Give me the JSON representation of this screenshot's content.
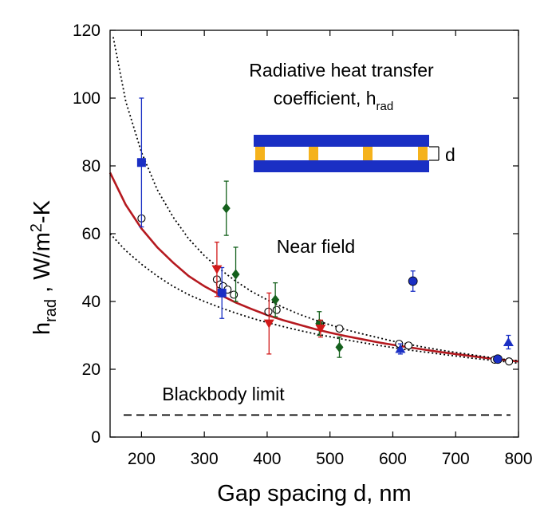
{
  "chart_data": {
    "type": "scatter",
    "title": "",
    "xlabel": "Gap spacing d, nm",
    "ylabel": {
      "main": "h",
      "sub": "rad",
      "units_prefix": " ,  W/m",
      "sup": "2",
      "units_suffix": "-K"
    },
    "xlim": [
      150,
      800
    ],
    "ylim": [
      0,
      120
    ],
    "xticks": [
      200,
      300,
      400,
      500,
      600,
      700,
      800
    ],
    "yticks": [
      0,
      20,
      40,
      60,
      80,
      100,
      120
    ],
    "grid": false,
    "annotations": {
      "title_line1": "Radiative heat transfer",
      "title_line2": "coefficient, h",
      "title_line2_sub": "rad",
      "near_field": "Near field",
      "blackbody": "Blackbody limit",
      "gap_label": "d"
    },
    "blackbody_limit": 6.5,
    "curves": [
      {
        "name": "fit",
        "style": "solid",
        "color": "#b5191f",
        "x": [
          150,
          175,
          200,
          225,
          250,
          275,
          300,
          325,
          350,
          375,
          400,
          425,
          450,
          475,
          500,
          525,
          550,
          575,
          600,
          625,
          650,
          675,
          700,
          725,
          750,
          775,
          800
        ],
        "y": [
          78,
          68.5,
          61.5,
          56,
          51.5,
          47.5,
          44.5,
          42,
          39.7,
          37.8,
          36,
          34.5,
          33.2,
          31.9,
          30.8,
          29.8,
          28.9,
          28,
          27.2,
          26.5,
          25.8,
          25.1,
          24.5,
          23.9,
          23.3,
          22.8,
          22.3
        ]
      },
      {
        "name": "upper-bound",
        "style": "dotted",
        "color": "#000000",
        "x": [
          155,
          175,
          200,
          225,
          250,
          275,
          300,
          325,
          350,
          375,
          400,
          425,
          450,
          475,
          500,
          525,
          550,
          575,
          600,
          625,
          650,
          675,
          700,
          725,
          750,
          775,
          800
        ],
        "y": [
          118,
          99,
          84,
          73,
          65,
          58.5,
          53.5,
          49.5,
          46,
          43,
          40.5,
          38.3,
          36.3,
          34.6,
          33.1,
          31.7,
          30.5,
          29.4,
          28.3,
          27.4,
          26.5,
          25.7,
          25,
          24.3,
          23.6,
          23,
          22.5
        ]
      },
      {
        "name": "lower-bound",
        "style": "dotted",
        "color": "#000000",
        "x": [
          150,
          175,
          200,
          225,
          250,
          275,
          300,
          325,
          350,
          375,
          400,
          425,
          450,
          475,
          500,
          525,
          550,
          575,
          600,
          625,
          650,
          675,
          700,
          725,
          750,
          775,
          800
        ],
        "y": [
          60,
          55,
          51,
          47.5,
          44.5,
          42,
          40,
          38.2,
          36.6,
          35.1,
          33.8,
          32.6,
          31.5,
          30.5,
          29.6,
          28.7,
          27.9,
          27.1,
          26.4,
          25.7,
          25.1,
          24.5,
          23.9,
          23.3,
          22.8,
          22.3,
          21.8
        ]
      }
    ],
    "series": [
      {
        "name": "open-circles",
        "marker": "circle-open",
        "color": "#000000",
        "points": [
          {
            "x": 200,
            "y": 64.5
          },
          {
            "x": 320,
            "y": 46.5
          },
          {
            "x": 325,
            "y": 45
          },
          {
            "x": 330,
            "y": 44.5
          },
          {
            "x": 337,
            "y": 43.5
          },
          {
            "x": 347,
            "y": 42
          },
          {
            "x": 402,
            "y": 37
          },
          {
            "x": 415,
            "y": 37.5
          },
          {
            "x": 484,
            "y": 33.5
          },
          {
            "x": 515,
            "y": 32
          },
          {
            "x": 610,
            "y": 27.5
          },
          {
            "x": 625,
            "y": 27
          },
          {
            "x": 762,
            "y": 22.8
          },
          {
            "x": 785,
            "y": 22.3
          }
        ]
      },
      {
        "name": "blue-squares",
        "marker": "square",
        "color": "#1a2fc4",
        "points": [
          {
            "x": 200,
            "y": 81,
            "err": 19
          },
          {
            "x": 328,
            "y": 42.5,
            "err": 7.5
          }
        ]
      },
      {
        "name": "green-diamonds",
        "marker": "diamond",
        "color": "#14601c",
        "points": [
          {
            "x": 335,
            "y": 67.5,
            "err": 8
          },
          {
            "x": 350,
            "y": 48,
            "err": 8
          },
          {
            "x": 413,
            "y": 40.5,
            "err": 5
          },
          {
            "x": 483,
            "y": 33.5,
            "err": 3.5
          },
          {
            "x": 515,
            "y": 26.5,
            "err": 3
          }
        ]
      },
      {
        "name": "red-triangles-down",
        "marker": "triangle-down",
        "color": "#d11a1a",
        "points": [
          {
            "x": 320,
            "y": 49.5,
            "err": 8
          },
          {
            "x": 403,
            "y": 33.5,
            "err": 9
          },
          {
            "x": 485,
            "y": 32,
            "err": 2.5
          }
        ]
      },
      {
        "name": "blue-circles",
        "marker": "circle",
        "color": "#1a2fc4",
        "points": [
          {
            "x": 632,
            "y": 46,
            "err": 3
          },
          {
            "x": 767,
            "y": 23,
            "err": 1
          }
        ]
      },
      {
        "name": "blue-triangles-up",
        "marker": "triangle-up",
        "color": "#1a2fc4",
        "points": [
          {
            "x": 612,
            "y": 26,
            "err": 1.5
          },
          {
            "x": 784,
            "y": 28,
            "err": 2
          }
        ]
      }
    ]
  },
  "inset": {
    "plate_color": "#1a2fc4",
    "spacer_color": "#f5b21c"
  }
}
